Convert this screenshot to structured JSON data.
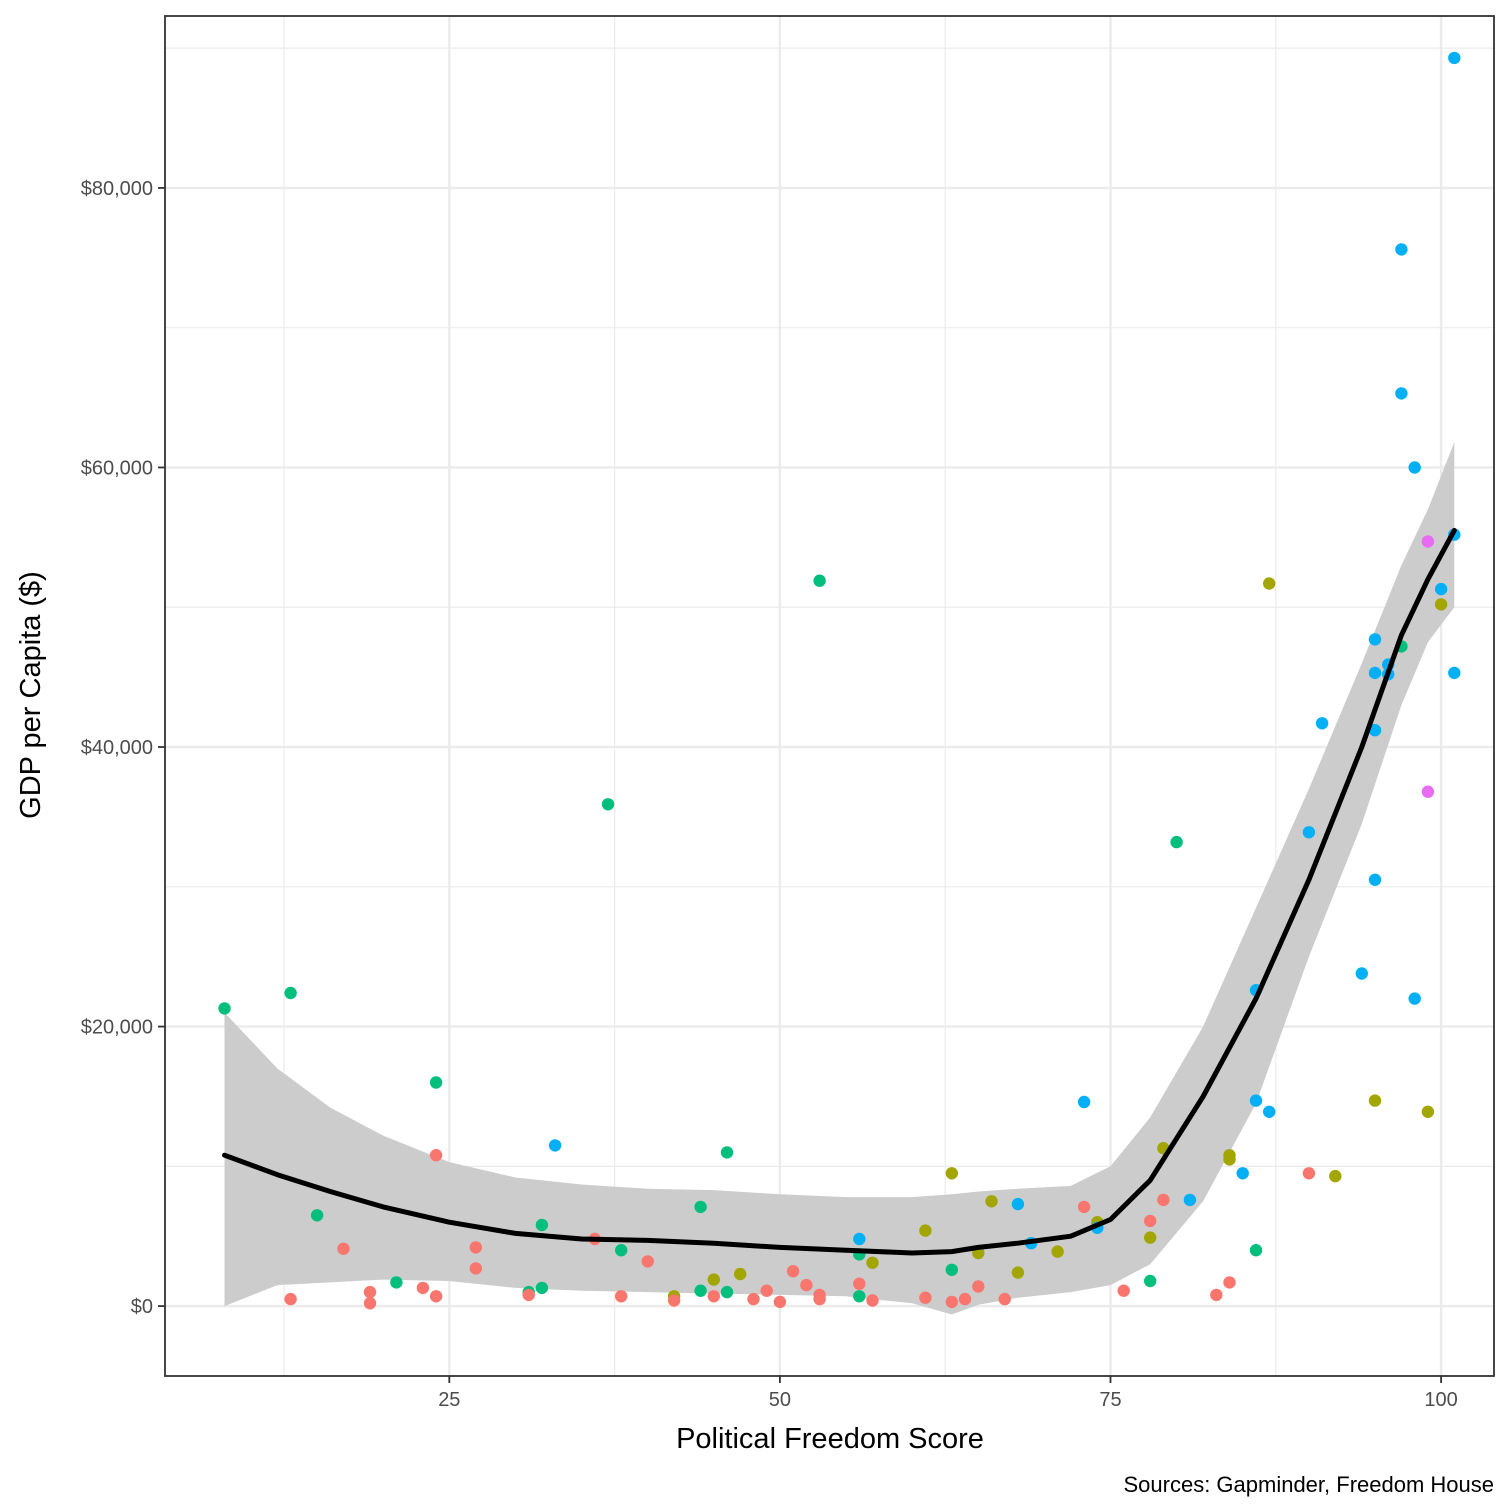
{
  "chart_data": {
    "type": "scatter",
    "xlabel": "Political Freedom Score",
    "ylabel": "GDP per Capita ($)",
    "caption": "Sources: Gapminder, Freedom House",
    "xlim": [
      3.5,
      104
    ],
    "ylim": [
      -5000,
      92300
    ],
    "x_ticks": [
      25,
      50,
      75,
      100
    ],
    "x_tick_labels": [
      "25",
      "50",
      "75",
      "100"
    ],
    "y_ticks": [
      0,
      20000,
      40000,
      60000,
      80000
    ],
    "y_tick_labels": [
      "$0",
      "$20,000",
      "$40,000",
      "$60,000",
      "$80,000"
    ],
    "grid": true,
    "legend": "none",
    "colors": {
      "background": "#ffffff",
      "panel_border": "#333333",
      "grid": "#ebebeb",
      "smooth_line": "#000000",
      "confidence_band": "#cccccc"
    },
    "groups": [
      {
        "id": "red",
        "color": "#f8766d"
      },
      {
        "id": "olive",
        "color": "#a3a500"
      },
      {
        "id": "green",
        "color": "#00bf7d"
      },
      {
        "id": "blue",
        "color": "#00b0f6"
      },
      {
        "id": "magenta",
        "color": "#e76bf3"
      }
    ],
    "points": [
      {
        "x": 8,
        "y": 21300,
        "g": "green"
      },
      {
        "x": 13,
        "y": 22400,
        "g": "green"
      },
      {
        "x": 13,
        "y": 500,
        "g": "red"
      },
      {
        "x": 15,
        "y": 6500,
        "g": "green"
      },
      {
        "x": 17,
        "y": 4100,
        "g": "red"
      },
      {
        "x": 19,
        "y": 1000,
        "g": "red"
      },
      {
        "x": 19,
        "y": 200,
        "g": "red"
      },
      {
        "x": 21,
        "y": 1700,
        "g": "green"
      },
      {
        "x": 23,
        "y": 1300,
        "g": "red"
      },
      {
        "x": 24,
        "y": 16000,
        "g": "green"
      },
      {
        "x": 24,
        "y": 10800,
        "g": "red"
      },
      {
        "x": 24,
        "y": 700,
        "g": "red"
      },
      {
        "x": 27,
        "y": 4200,
        "g": "red"
      },
      {
        "x": 27,
        "y": 2700,
        "g": "red"
      },
      {
        "x": 31,
        "y": 1000,
        "g": "green"
      },
      {
        "x": 31,
        "y": 800,
        "g": "red"
      },
      {
        "x": 32,
        "y": 5800,
        "g": "green"
      },
      {
        "x": 32,
        "y": 1300,
        "g": "green"
      },
      {
        "x": 33,
        "y": 11500,
        "g": "blue"
      },
      {
        "x": 36,
        "y": 4800,
        "g": "red"
      },
      {
        "x": 37,
        "y": 35900,
        "g": "green"
      },
      {
        "x": 38,
        "y": 4000,
        "g": "green"
      },
      {
        "x": 38,
        "y": 700,
        "g": "red"
      },
      {
        "x": 40,
        "y": 3200,
        "g": "red"
      },
      {
        "x": 42,
        "y": 700,
        "g": "olive"
      },
      {
        "x": 42,
        "y": 400,
        "g": "red"
      },
      {
        "x": 44,
        "y": 7100,
        "g": "green"
      },
      {
        "x": 44,
        "y": 1100,
        "g": "green"
      },
      {
        "x": 45,
        "y": 1900,
        "g": "olive"
      },
      {
        "x": 45,
        "y": 700,
        "g": "red"
      },
      {
        "x": 46,
        "y": 11000,
        "g": "green"
      },
      {
        "x": 46,
        "y": 1000,
        "g": "green"
      },
      {
        "x": 47,
        "y": 2300,
        "g": "olive"
      },
      {
        "x": 48,
        "y": 500,
        "g": "red"
      },
      {
        "x": 49,
        "y": 1100,
        "g": "red"
      },
      {
        "x": 50,
        "y": 300,
        "g": "red"
      },
      {
        "x": 51,
        "y": 2500,
        "g": "red"
      },
      {
        "x": 52,
        "y": 1500,
        "g": "red"
      },
      {
        "x": 53,
        "y": 51900,
        "g": "green"
      },
      {
        "x": 53,
        "y": 800,
        "g": "red"
      },
      {
        "x": 53,
        "y": 500,
        "g": "red"
      },
      {
        "x": 56,
        "y": 4800,
        "g": "blue"
      },
      {
        "x": 56,
        "y": 3700,
        "g": "green"
      },
      {
        "x": 56,
        "y": 1600,
        "g": "red"
      },
      {
        "x": 56,
        "y": 700,
        "g": "green"
      },
      {
        "x": 57,
        "y": 3100,
        "g": "olive"
      },
      {
        "x": 57,
        "y": 400,
        "g": "red"
      },
      {
        "x": 61,
        "y": 5400,
        "g": "olive"
      },
      {
        "x": 61,
        "y": 600,
        "g": "red"
      },
      {
        "x": 63,
        "y": 9500,
        "g": "olive"
      },
      {
        "x": 63,
        "y": 2600,
        "g": "green"
      },
      {
        "x": 63,
        "y": 300,
        "g": "red"
      },
      {
        "x": 64,
        "y": 500,
        "g": "red"
      },
      {
        "x": 65,
        "y": 3800,
        "g": "olive"
      },
      {
        "x": 65,
        "y": 1400,
        "g": "red"
      },
      {
        "x": 66,
        "y": 7500,
        "g": "olive"
      },
      {
        "x": 67,
        "y": 500,
        "g": "red"
      },
      {
        "x": 68,
        "y": 7300,
        "g": "blue"
      },
      {
        "x": 68,
        "y": 2400,
        "g": "olive"
      },
      {
        "x": 69,
        "y": 4500,
        "g": "blue"
      },
      {
        "x": 71,
        "y": 3900,
        "g": "olive"
      },
      {
        "x": 73,
        "y": 14600,
        "g": "blue"
      },
      {
        "x": 73,
        "y": 7100,
        "g": "red"
      },
      {
        "x": 74,
        "y": 6000,
        "g": "olive"
      },
      {
        "x": 74,
        "y": 5600,
        "g": "blue"
      },
      {
        "x": 76,
        "y": 1100,
        "g": "red"
      },
      {
        "x": 78,
        "y": 6100,
        "g": "red"
      },
      {
        "x": 78,
        "y": 4900,
        "g": "olive"
      },
      {
        "x": 78,
        "y": 1800,
        "g": "green"
      },
      {
        "x": 79,
        "y": 11300,
        "g": "olive"
      },
      {
        "x": 79,
        "y": 7600,
        "g": "red"
      },
      {
        "x": 80,
        "y": 33200,
        "g": "green"
      },
      {
        "x": 81,
        "y": 7600,
        "g": "blue"
      },
      {
        "x": 83,
        "y": 800,
        "g": "red"
      },
      {
        "x": 84,
        "y": 10800,
        "g": "olive"
      },
      {
        "x": 84,
        "y": 10500,
        "g": "olive"
      },
      {
        "x": 84,
        "y": 1700,
        "g": "red"
      },
      {
        "x": 85,
        "y": 9500,
        "g": "blue"
      },
      {
        "x": 86,
        "y": 22600,
        "g": "blue"
      },
      {
        "x": 86,
        "y": 14700,
        "g": "blue"
      },
      {
        "x": 86,
        "y": 4000,
        "g": "green"
      },
      {
        "x": 87,
        "y": 51700,
        "g": "olive"
      },
      {
        "x": 87,
        "y": 13900,
        "g": "blue"
      },
      {
        "x": 90,
        "y": 33900,
        "g": "blue"
      },
      {
        "x": 90,
        "y": 9500,
        "g": "red"
      },
      {
        "x": 91,
        "y": 41700,
        "g": "blue"
      },
      {
        "x": 92,
        "y": 9300,
        "g": "olive"
      },
      {
        "x": 94,
        "y": 23800,
        "g": "blue"
      },
      {
        "x": 95,
        "y": 47700,
        "g": "blue"
      },
      {
        "x": 95,
        "y": 45300,
        "g": "blue"
      },
      {
        "x": 95,
        "y": 41200,
        "g": "blue"
      },
      {
        "x": 95,
        "y": 30500,
        "g": "blue"
      },
      {
        "x": 95,
        "y": 14700,
        "g": "olive"
      },
      {
        "x": 96,
        "y": 45900,
        "g": "blue"
      },
      {
        "x": 96,
        "y": 45200,
        "g": "blue"
      },
      {
        "x": 97,
        "y": 75600,
        "g": "blue"
      },
      {
        "x": 97,
        "y": 65300,
        "g": "blue"
      },
      {
        "x": 97,
        "y": 47200,
        "g": "green"
      },
      {
        "x": 98,
        "y": 60000,
        "g": "blue"
      },
      {
        "x": 98,
        "y": 22000,
        "g": "blue"
      },
      {
        "x": 99,
        "y": 54700,
        "g": "magenta"
      },
      {
        "x": 99,
        "y": 36800,
        "g": "magenta"
      },
      {
        "x": 99,
        "y": 13900,
        "g": "olive"
      },
      {
        "x": 100,
        "y": 51300,
        "g": "blue"
      },
      {
        "x": 100,
        "y": 50200,
        "g": "olive"
      },
      {
        "x": 101,
        "y": 89300,
        "g": "blue"
      },
      {
        "x": 101,
        "y": 55200,
        "g": "blue"
      },
      {
        "x": 101,
        "y": 45300,
        "g": "blue"
      }
    ],
    "smooth": {
      "x": [
        8,
        12,
        16,
        20,
        25,
        30,
        35,
        40,
        45,
        50,
        55,
        60,
        63,
        65,
        68,
        72,
        75,
        78,
        82,
        86,
        90,
        94,
        97,
        99,
        101
      ],
      "y": [
        10800,
        9400,
        8200,
        7100,
        6000,
        5200,
        4800,
        4700,
        4500,
        4200,
        4000,
        3800,
        3900,
        4200,
        4500,
        5000,
        6200,
        9000,
        15000,
        22000,
        30500,
        40000,
        48000,
        52000,
        55500
      ],
      "lower": [
        0,
        1500,
        1700,
        1900,
        1800,
        1300,
        1100,
        1000,
        900,
        800,
        700,
        200,
        -600,
        100,
        600,
        1000,
        1500,
        3000,
        7500,
        14500,
        25000,
        34500,
        43000,
        47500,
        50000
      ],
      "upper": [
        21000,
        17000,
        14200,
        12200,
        10300,
        9200,
        8700,
        8400,
        8300,
        8000,
        7800,
        7800,
        8000,
        8200,
        8400,
        8600,
        10000,
        13500,
        20000,
        28500,
        37000,
        46000,
        53000,
        57000,
        61800
      ]
    }
  }
}
